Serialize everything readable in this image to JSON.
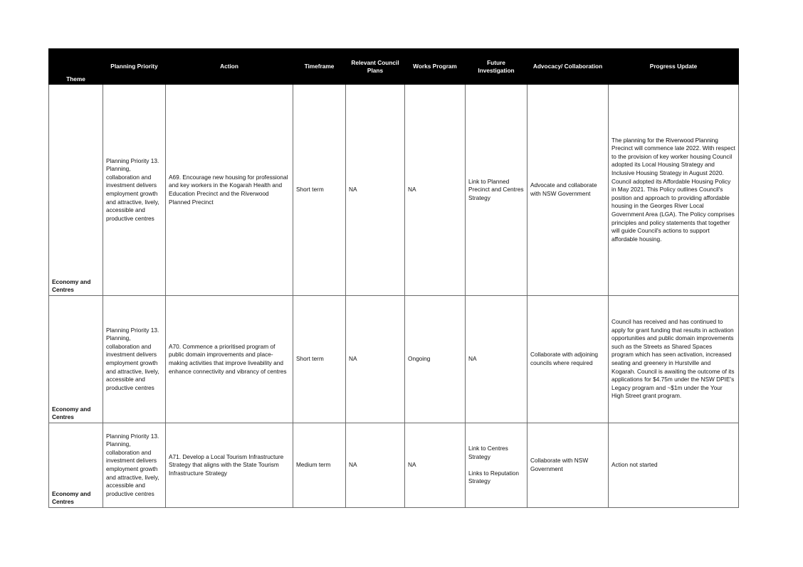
{
  "table": {
    "headers": {
      "theme": "Theme",
      "planning_priority": "Planning Priority",
      "action": "Action",
      "timeframe": "Timeframe",
      "relevant_council_plans": "Relevant Council Plans",
      "works_program": "Works Program",
      "future_investigation": "Future Investigation",
      "advocacy_collaboration": "Advocacy/ Collaboration",
      "progress_update": "Progress Update"
    },
    "rows": [
      {
        "theme": "Economy and Centres",
        "planning_priority": "Planning Priority 13. Planning, collaboration and investment delivers employment growth and attractive, lively, accessible and productive centres",
        "action": "A69. Encourage new housing for professional and key workers in the Kogarah Health and Education Precinct and the Riverwood Planned Precinct",
        "timeframe": "Short term",
        "relevant_council_plans": "NA",
        "works_program": "NA",
        "future_investigation": [
          "Link to Planned Precinct and Centres Strategy"
        ],
        "advocacy_collaboration": "Advocate and collaborate with NSW Government",
        "progress_update": "The planning for the Riverwood Planning Precinct will commence late 2022. With respect to the provision of key worker housing Council adopted its Local Housing Strategy and Inclusive Housing Strategy in August 2020. Council adopted its Affordable Housing Policy in May 2021. This Policy outlines Council's position and approach to providing affordable housing in the Georges River Local Government Area (LGA). The Policy comprises principles and policy statements that together will guide Council's actions to support affordable housing."
      },
      {
        "theme": "Economy and Centres",
        "planning_priority": "Planning Priority 13. Planning, collaboration and investment delivers employment growth and attractive, lively, accessible and productive centres",
        "action": "A70. Commence a prioritised program of public domain improvements and place-making activities that improve liveability and enhance connectivity and vibrancy of centres",
        "timeframe": "Short term",
        "relevant_council_plans": "NA",
        "works_program": "Ongoing",
        "future_investigation": [
          "NA"
        ],
        "advocacy_collaboration": "Collaborate with adjoining councils where required",
        "progress_update": "Council has received and has continued to apply for grant funding that results in activation opportunities and public domain improvements such as the Streets as Shared Spaces program which has seen activation, increased seating and greenery in Hurstville and Kogarah. Council is awaiting the outcome of its applications for $4.75m under the NSW DPIE's Legacy program and ~$1m under the Your High Street grant program."
      },
      {
        "theme": "Economy and Centres",
        "planning_priority": "Planning Priority 13. Planning, collaboration and investment delivers employment growth and attractive, lively, accessible and productive centres",
        "action": "A71. Develop a Local Tourism Infrastructure Strategy that aligns with the State Tourism Infrastructure Strategy",
        "timeframe": "Medium term",
        "relevant_council_plans": "NA",
        "works_program": "NA",
        "future_investigation": [
          "Link to Centres Strategy",
          "Links to Reputation Strategy"
        ],
        "advocacy_collaboration": "Collaborate with NSW Government",
        "progress_update": "Action not started"
      }
    ]
  }
}
